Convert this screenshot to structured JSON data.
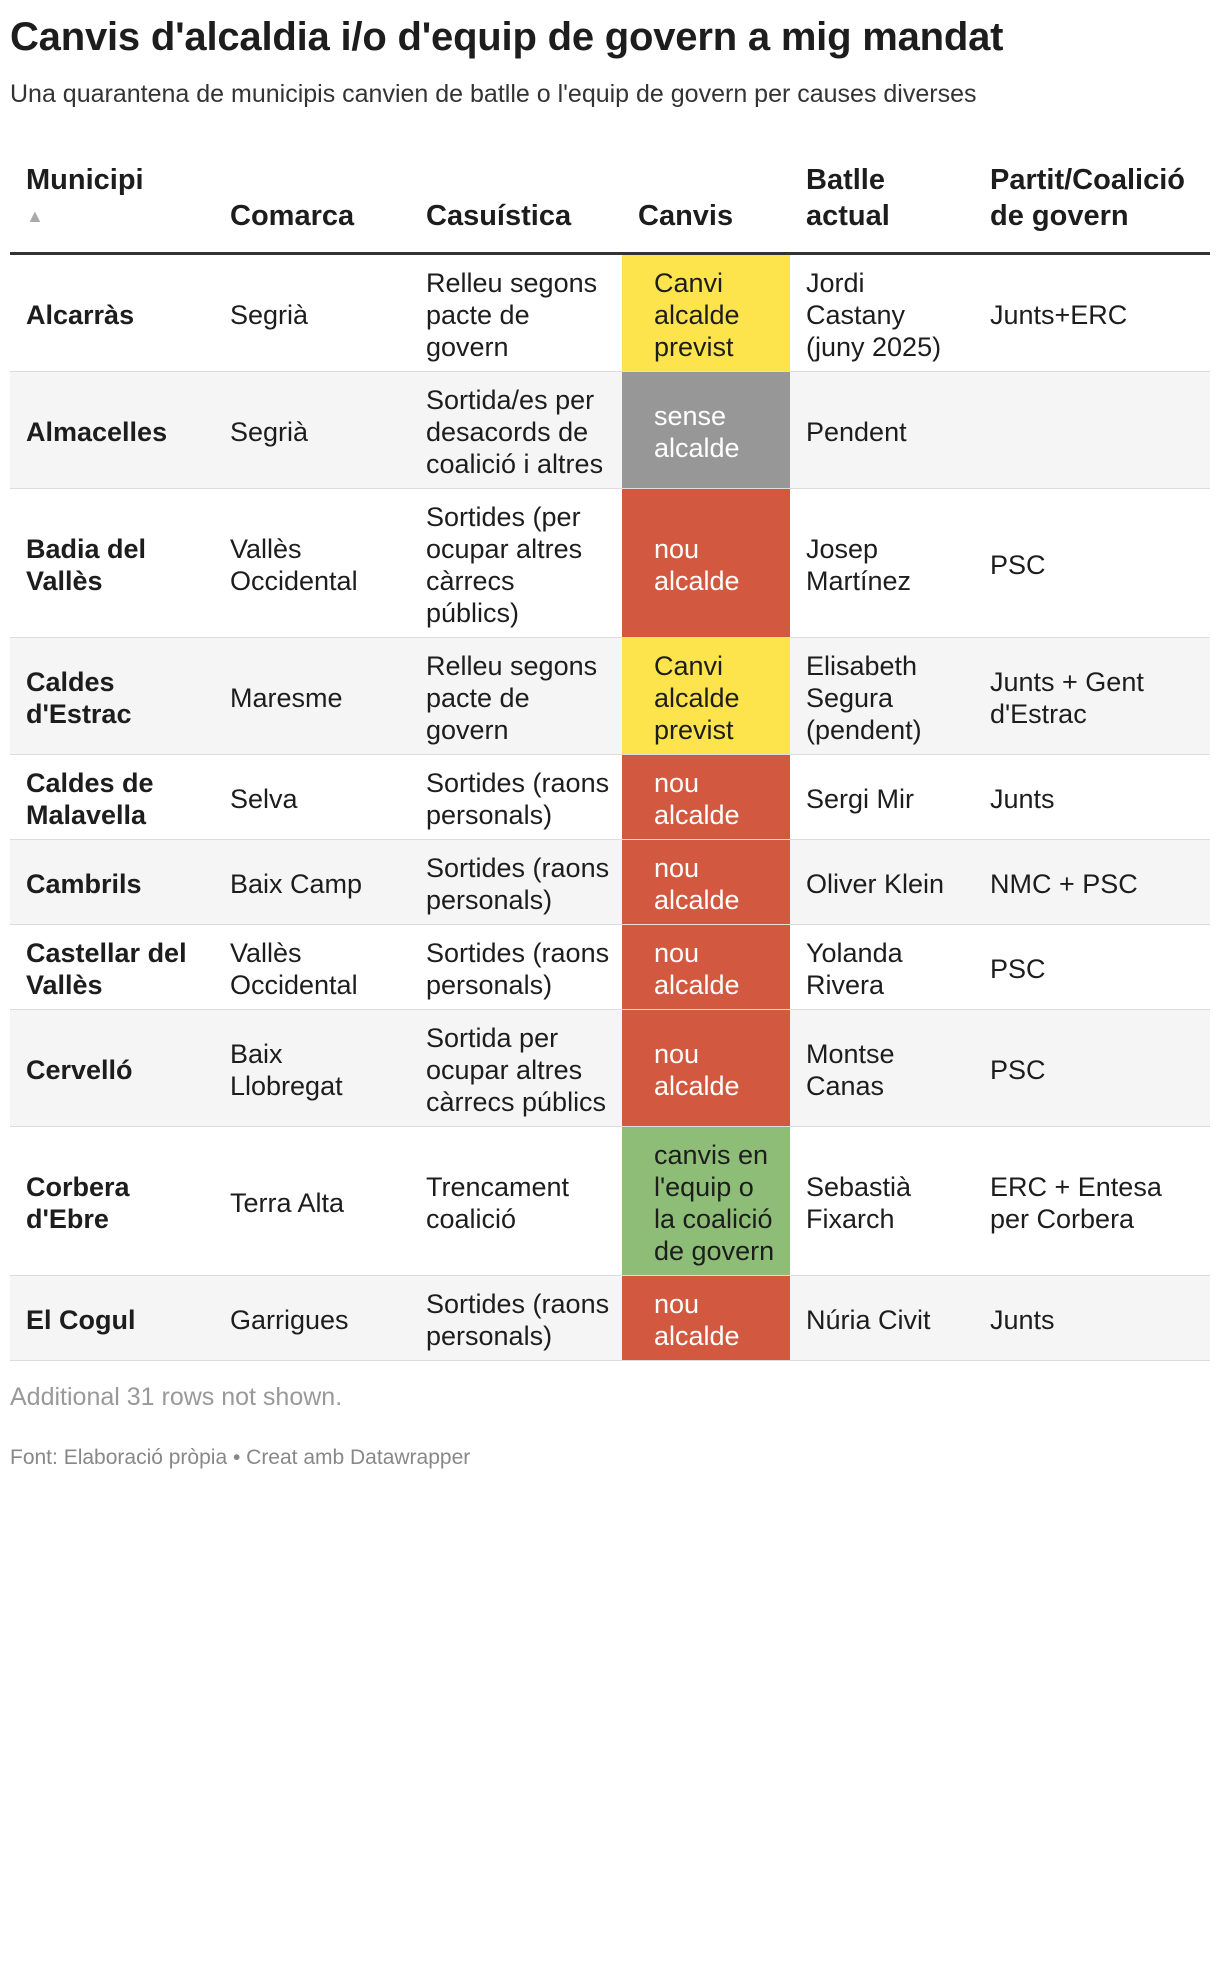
{
  "title": "Canvis d'alcaldia i/o d'equip de govern a mig mandat",
  "subtitle": "Una quarantena de municipis canvien de batlle o l'equip de govern per causes diverses",
  "columns": {
    "municipi": "Municipi",
    "sort_indicator": "▲",
    "comarca": "Comarca",
    "casuistica": "Casuística",
    "canvis": "Canvis",
    "batlle": "Batlle actual",
    "partit": "Partit/Coalició de govern"
  },
  "colors": {
    "Canvi alcalde previst": "#fde44c",
    "sense alcalde": "#979797",
    "nou alcalde": "#d25840",
    "canvis en l'equip o la coalició de govern": "#8ebd78"
  },
  "chart_data": {
    "type": "table",
    "rows": [
      {
        "municipi": "Alcarràs",
        "comarca": "Segrià",
        "casuistica": "Relleu segons pacte de govern",
        "canvis": "Canvi alcalde previst",
        "batlle": "Jordi Castany (juny 2025)",
        "partit": "Junts+ERC",
        "color": "yellow"
      },
      {
        "municipi": "Almacelles",
        "comarca": "Segrià",
        "casuistica": "Sortida/es per desacords de coalició i altres",
        "canvis": "sense alcalde",
        "batlle": "Pendent",
        "partit": "",
        "color": "gray"
      },
      {
        "municipi": "Badia del Vallès",
        "comarca": "Vallès Occidental",
        "casuistica": "Sortides (per ocupar altres càrrecs públics)",
        "canvis": "nou alcalde",
        "batlle": "Josep Martínez",
        "partit": "PSC",
        "color": "red"
      },
      {
        "municipi": "Caldes d'Estrac",
        "comarca": "Maresme",
        "casuistica": "Relleu segons pacte de govern",
        "canvis": "Canvi alcalde previst",
        "batlle": "Elisabeth Segura (pendent)",
        "partit": "Junts + Gent d'Estrac",
        "color": "yellow"
      },
      {
        "municipi": "Caldes de Malavella",
        "comarca": "Selva",
        "casuistica": "Sortides (raons personals)",
        "canvis": "nou alcalde",
        "batlle": "Sergi Mir",
        "partit": "Junts",
        "color": "red"
      },
      {
        "municipi": "Cambrils",
        "comarca": "Baix Camp",
        "casuistica": "Sortides (raons personals)",
        "canvis": "nou alcalde",
        "batlle": "Oliver Klein",
        "partit": "NMC + PSC",
        "color": "red"
      },
      {
        "municipi": "Castellar del Vallès",
        "comarca": "Vallès Occidental",
        "casuistica": "Sortides (raons personals)",
        "canvis": "nou alcalde",
        "batlle": "Yolanda Rivera",
        "partit": "PSC",
        "color": "red"
      },
      {
        "municipi": "Cervelló",
        "comarca": "Baix Llobregat",
        "casuistica": "Sortida per ocupar altres càrrecs públics",
        "canvis": "nou alcalde",
        "batlle": "Montse Canas",
        "partit": "PSC",
        "color": "red"
      },
      {
        "municipi": "Corbera d'Ebre",
        "comarca": "Terra Alta",
        "casuistica": "Trencament coalició",
        "canvis": "canvis en l'equip o la coalició de govern",
        "batlle": "Sebastià Fixarch",
        "partit": "ERC + Entesa per Corbera",
        "color": "green"
      },
      {
        "municipi": "El Cogul",
        "comarca": "Garrigues",
        "casuistica": "Sortides (raons personals)",
        "canvis": "nou alcalde",
        "batlle": "Núria Civit",
        "partit": "Junts",
        "color": "red"
      }
    ]
  },
  "note": "Additional 31 rows not shown.",
  "footer": "Font: Elaboració pròpia • Creat amb Datawrapper"
}
